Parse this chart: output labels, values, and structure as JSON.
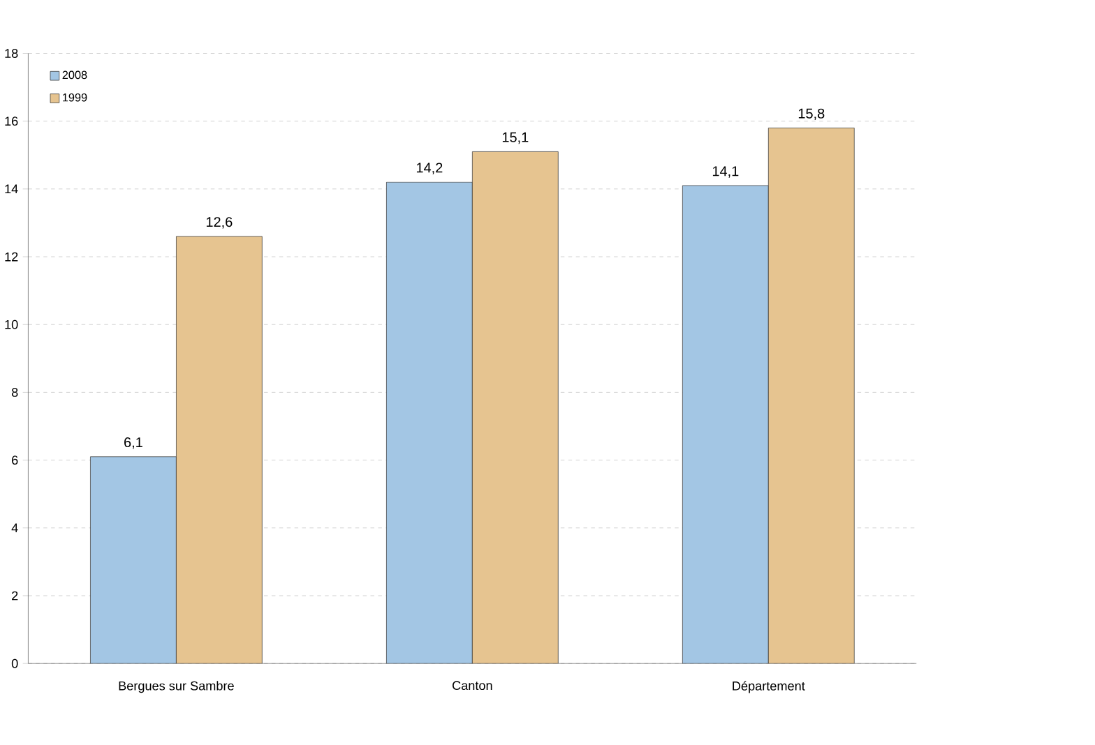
{
  "chart_data": {
    "type": "bar",
    "categories": [
      "Bergues sur Sambre",
      "Canton",
      "Département"
    ],
    "series": [
      {
        "name": "2008",
        "color": "#a3c6e4",
        "values": [
          6.1,
          14.2,
          14.1
        ],
        "value_labels": [
          "6,1",
          "14,2",
          "14,1"
        ]
      },
      {
        "name": "1999",
        "color": "#e6c490",
        "values": [
          12.6,
          15.1,
          15.8
        ],
        "value_labels": [
          "12,6",
          "15,1",
          "15,8"
        ]
      }
    ],
    "ylim": [
      0,
      18
    ],
    "yticks": [
      0,
      2,
      4,
      6,
      8,
      10,
      12,
      14,
      16,
      18
    ],
    "grid": "y",
    "legend": "top left"
  }
}
